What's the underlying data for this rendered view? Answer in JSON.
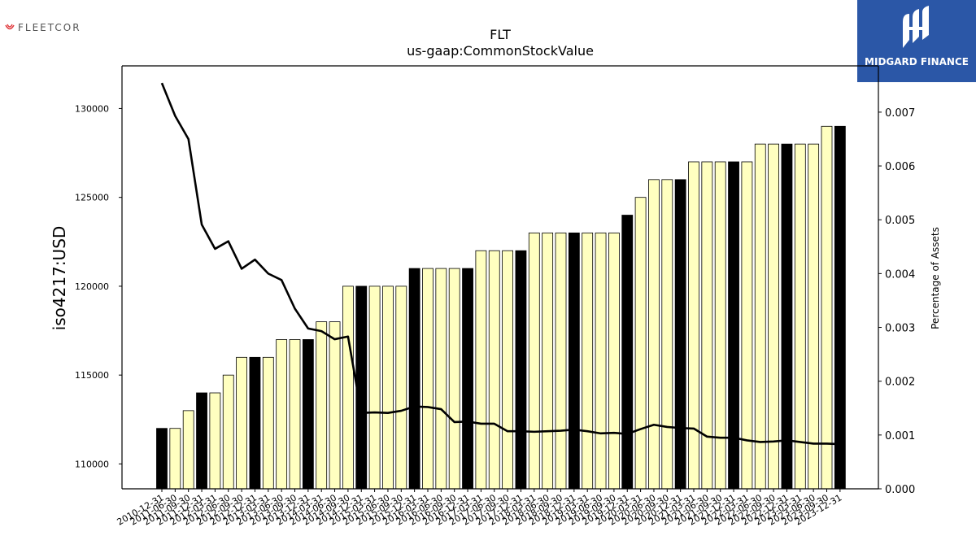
{
  "brand_left": {
    "name": "FLEETCOR",
    "mark_color": "#e03a3e"
  },
  "brand_right": {
    "name": "MIDGARD FINANCE",
    "bg_color": "#2b57a7"
  },
  "chart_data": {
    "type": "bar",
    "title": "FLT",
    "subtitle": "us-gaap:CommonStockValue",
    "ylabel": "iso4217:USD",
    "y2label": "Percentage of Assets",
    "ylim": [
      108600,
      132400
    ],
    "y2lim": [
      0,
      0.00786
    ],
    "yticks": [
      110000,
      115000,
      120000,
      125000,
      130000
    ],
    "y2ticks": [
      "0.000",
      "0.001",
      "0.002",
      "0.003",
      "0.004",
      "0.005",
      "0.006",
      "0.007"
    ],
    "categories": [
      "2010-12-31",
      "2011-06-30",
      "2011-09-30",
      "2011-12-31",
      "2012-03-31",
      "2012-06-30",
      "2012-09-30",
      "2012-12-31",
      "2013-03-31",
      "2013-06-30",
      "2013-09-30",
      "2013-12-31",
      "2014-03-31",
      "2014-06-30",
      "2014-09-30",
      "2014-12-31",
      "2015-03-31",
      "2015-06-30",
      "2015-09-30",
      "2015-12-31",
      "2016-03-31",
      "2016-06-30",
      "2016-09-30",
      "2016-12-31",
      "2017-03-31",
      "2017-06-30",
      "2017-09-30",
      "2017-12-31",
      "2018-03-31",
      "2018-06-30",
      "2018-09-30",
      "2018-12-31",
      "2019-03-31",
      "2019-06-30",
      "2019-09-30",
      "2019-12-31",
      "2020-03-31",
      "2020-06-30",
      "2020-09-30",
      "2020-12-31",
      "2021-03-31",
      "2021-06-30",
      "2021-09-30",
      "2021-12-31",
      "2022-03-31",
      "2022-06-30",
      "2022-09-30",
      "2022-12-31",
      "2023-03-31",
      "2023-06-30",
      "2023-09-30",
      "2023-12-31"
    ],
    "values": [
      112000,
      112000,
      113000,
      114000,
      114000,
      115000,
      116000,
      116000,
      116000,
      117000,
      117000,
      117000,
      118000,
      118000,
      120000,
      120000,
      120000,
      120000,
      120000,
      121000,
      121000,
      121000,
      121000,
      121000,
      122000,
      122000,
      122000,
      122000,
      123000,
      123000,
      123000,
      123000,
      123000,
      123000,
      123000,
      124000,
      125000,
      126000,
      126000,
      126000,
      127000,
      127000,
      127000,
      127000,
      127000,
      128000,
      128000,
      128000,
      128000,
      128000,
      129000,
      129000
    ],
    "annual": [
      true,
      false,
      false,
      true,
      false,
      false,
      false,
      true,
      false,
      false,
      false,
      true,
      false,
      false,
      false,
      true,
      false,
      false,
      false,
      true,
      false,
      false,
      false,
      true,
      false,
      false,
      false,
      true,
      false,
      false,
      false,
      true,
      false,
      false,
      false,
      true,
      false,
      false,
      false,
      true,
      false,
      false,
      false,
      true,
      false,
      false,
      false,
      true,
      false,
      false,
      false,
      true
    ],
    "line_values": [
      0.00754,
      0.00693,
      0.0065,
      0.00491,
      0.00446,
      0.0046,
      0.00409,
      0.00426,
      0.004,
      0.00388,
      0.00335,
      0.00298,
      0.00293,
      0.00278,
      0.00283,
      0.00141,
      0.00142,
      0.00141,
      0.00145,
      0.00153,
      0.00152,
      0.00148,
      0.00124,
      0.00125,
      0.00121,
      0.00121,
      0.00107,
      0.00107,
      0.00106,
      0.00107,
      0.00108,
      0.0011,
      0.00107,
      0.00103,
      0.00104,
      0.00102,
      0.00111,
      0.00119,
      0.00115,
      0.00113,
      0.00112,
      0.00097,
      0.00095,
      0.00095,
      0.0009,
      0.00087,
      0.00088,
      0.0009,
      0.00087,
      0.00084,
      0.00084,
      0.00083
    ],
    "colors": {
      "quarter_bar": "#ffffc0",
      "annual_bar": "#000000",
      "bar_edge": "#000000",
      "line": "#000000"
    },
    "grid": false
  }
}
